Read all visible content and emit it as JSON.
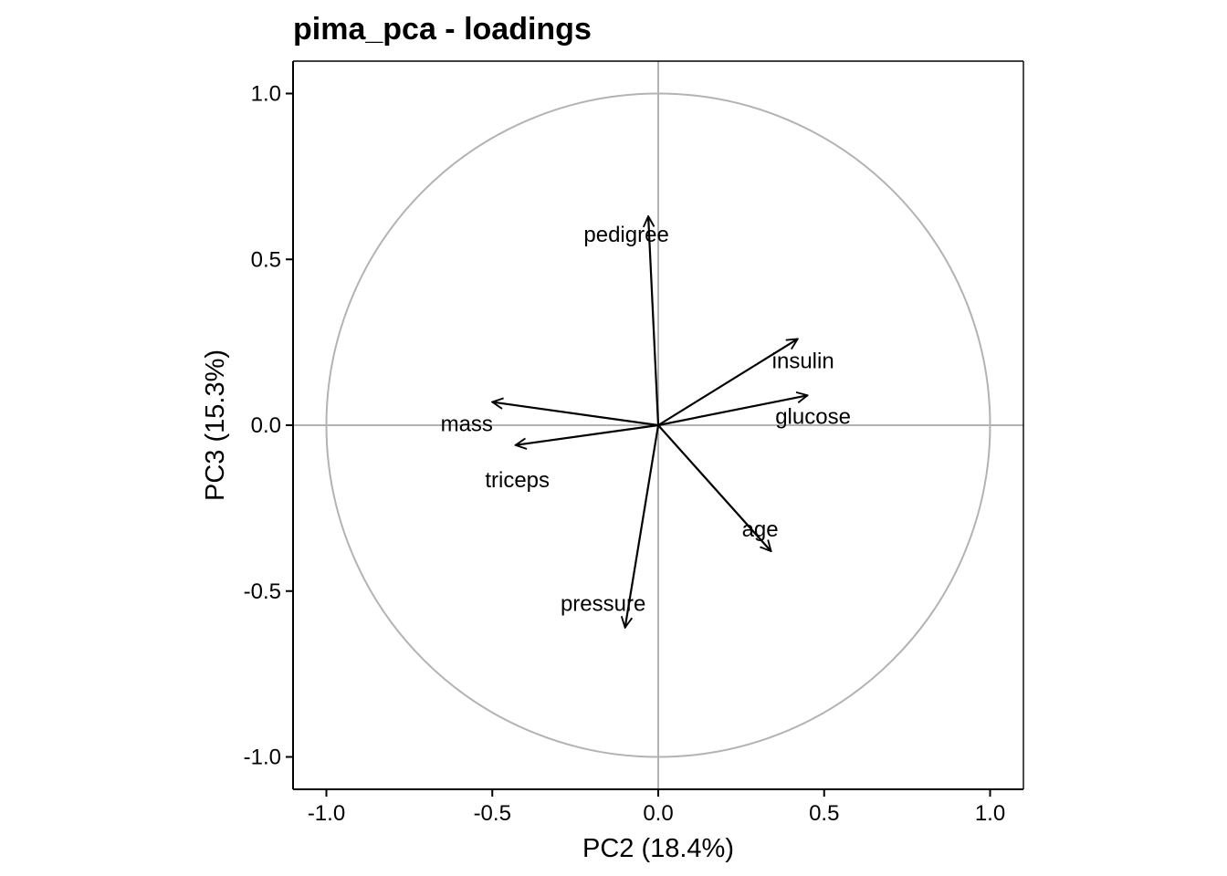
{
  "chart_data": {
    "type": "scatter",
    "subtype": "pca-loadings-biplot",
    "title": "pima_pca - loadings",
    "xlabel": "PC2 (18.4%)",
    "ylabel": "PC3 (15.3%)",
    "xlim": [
      -1.1,
      1.1
    ],
    "ylim": [
      -1.1,
      1.1
    ],
    "xticks": [
      -1.0,
      -0.5,
      0.0,
      0.5,
      1.0
    ],
    "yticks": [
      -1.0,
      -0.5,
      0.0,
      0.5,
      1.0
    ],
    "xtick_labels": [
      "-1.0",
      "-0.5",
      "0.0",
      "0.5",
      "1.0"
    ],
    "ytick_labels": [
      "1.0",
      "0.5",
      "0.0",
      "-0.5",
      "-1.0"
    ],
    "unit_circle": true,
    "reference_lines": {
      "x": 0,
      "y": 0
    },
    "loadings": [
      {
        "name": "pedigree",
        "x": -0.03,
        "y": 0.63
      },
      {
        "name": "insulin",
        "x": 0.42,
        "y": 0.26
      },
      {
        "name": "glucose",
        "x": 0.45,
        "y": 0.09
      },
      {
        "name": "mass",
        "x": -0.5,
        "y": 0.07
      },
      {
        "name": "triceps",
        "x": -0.43,
        "y": -0.06
      },
      {
        "name": "age",
        "x": 0.34,
        "y": -0.38
      },
      {
        "name": "pressure",
        "x": -0.1,
        "y": -0.61
      }
    ],
    "grid": false,
    "legend": "none",
    "colors": {
      "arrow": "#000000",
      "circle": "#b3b3b3",
      "reference": "#b3b3b3",
      "frame": "#000000"
    }
  }
}
